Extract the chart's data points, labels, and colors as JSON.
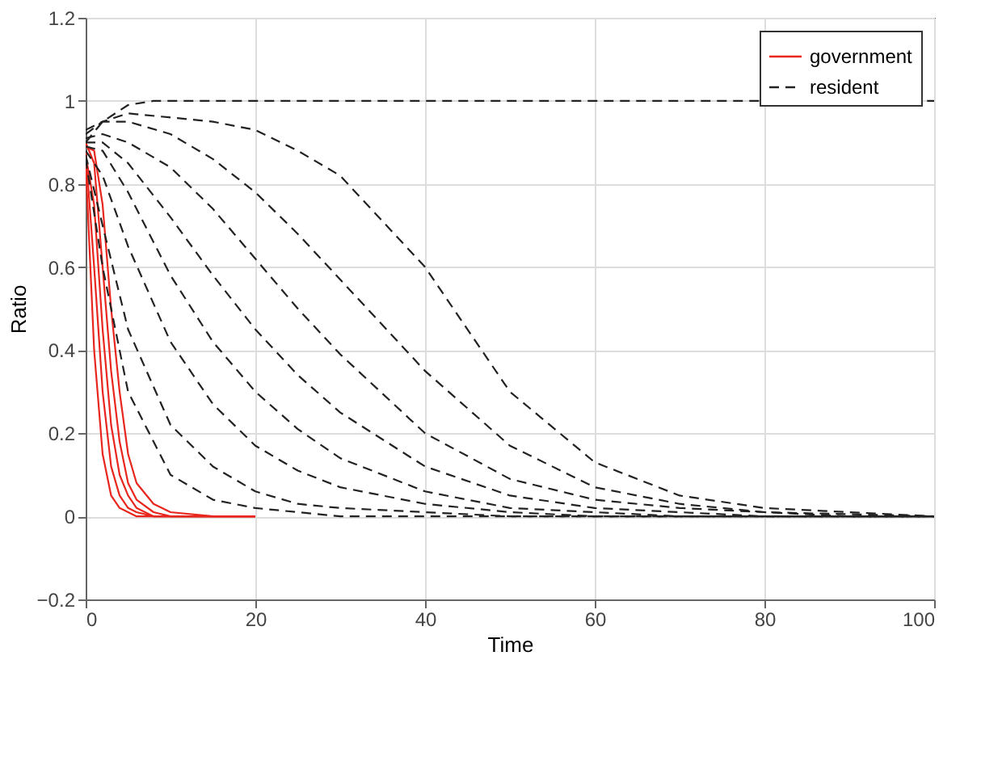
{
  "chart_data": {
    "type": "line",
    "xlabel": "Time",
    "ylabel": "Ratio",
    "xlim": [
      0,
      100
    ],
    "xticks": [
      0,
      20,
      40,
      60,
      80,
      100
    ],
    "ylim": [
      -0.2,
      1.2
    ],
    "yticks": [
      -0.2,
      0,
      0.2,
      0.4,
      0.6,
      0.8,
      1,
      1.2
    ],
    "grid": true,
    "legend": "top right",
    "series": [
      {
        "name": "government",
        "color": "#e8261e",
        "line_style": "solid",
        "x": [
          0,
          1,
          2,
          3,
          4,
          5,
          6,
          8,
          10,
          15,
          20
        ],
        "values": [
          0.9,
          0.85,
          0.6,
          0.35,
          0.18,
          0.08,
          0.04,
          0.01,
          0,
          0,
          0
        ]
      },
      {
        "name": "resident",
        "color": "#222222",
        "line_style": "dashed",
        "x": [
          0,
          2,
          5,
          10,
          15,
          20,
          25,
          30,
          40,
          50,
          60,
          70,
          80,
          90,
          100
        ],
        "values": [
          0.92,
          0.95,
          0.97,
          0.96,
          0.95,
          0.93,
          0.88,
          0.82,
          0.6,
          0.3,
          0.13,
          0.05,
          0.02,
          0.01,
          0
        ]
      },
      {
        "color": "#e8261e",
        "line_style": "solid",
        "x": [
          0,
          1,
          2,
          3,
          4,
          5,
          6,
          8,
          10,
          15,
          20
        ],
        "values": [
          0.88,
          0.6,
          0.3,
          0.12,
          0.05,
          0.02,
          0.01,
          0,
          0,
          0,
          0
        ]
      },
      {
        "color": "#e8261e",
        "line_style": "solid",
        "x": [
          0,
          1,
          2,
          3,
          4,
          5,
          6,
          8,
          10,
          15,
          20
        ],
        "values": [
          0.85,
          0.4,
          0.15,
          0.05,
          0.02,
          0.01,
          0,
          0,
          0,
          0,
          0
        ]
      },
      {
        "color": "#e8261e",
        "line_style": "solid",
        "x": [
          0,
          1,
          2,
          3,
          4,
          5,
          6,
          8,
          10,
          15,
          20
        ],
        "values": [
          0.87,
          0.75,
          0.45,
          0.22,
          0.1,
          0.05,
          0.02,
          0,
          0,
          0,
          0
        ]
      },
      {
        "color": "#e8261e",
        "line_style": "solid",
        "x": [
          0,
          1,
          2,
          3,
          4,
          5,
          6,
          8,
          10,
          15,
          20
        ],
        "values": [
          0.89,
          0.88,
          0.75,
          0.5,
          0.3,
          0.15,
          0.08,
          0.03,
          0.01,
          0,
          0
        ]
      },
      {
        "color": "#222222",
        "line_style": "dashed",
        "x": [
          0,
          2,
          5,
          10,
          15,
          20,
          25,
          30,
          40,
          50,
          60,
          70,
          80,
          90,
          100
        ],
        "values": [
          0.93,
          0.95,
          0.95,
          0.92,
          0.86,
          0.78,
          0.68,
          0.57,
          0.35,
          0.17,
          0.07,
          0.03,
          0.01,
          0.005,
          0
        ]
      },
      {
        "color": "#222222",
        "line_style": "dashed",
        "x": [
          0,
          2,
          5,
          10,
          15,
          20,
          25,
          30,
          40,
          50,
          60,
          70,
          80,
          90,
          100
        ],
        "values": [
          0.91,
          0.92,
          0.9,
          0.84,
          0.74,
          0.62,
          0.5,
          0.39,
          0.2,
          0.09,
          0.04,
          0.02,
          0.01,
          0,
          0
        ]
      },
      {
        "color": "#222222",
        "line_style": "dashed",
        "x": [
          0,
          2,
          5,
          10,
          15,
          20,
          25,
          30,
          40,
          50,
          60,
          70,
          80,
          90,
          100
        ],
        "values": [
          0.9,
          0.9,
          0.85,
          0.72,
          0.58,
          0.45,
          0.34,
          0.25,
          0.12,
          0.05,
          0.02,
          0.01,
          0,
          0,
          0
        ]
      },
      {
        "color": "#222222",
        "line_style": "dashed",
        "x": [
          0,
          2,
          5,
          10,
          15,
          20,
          25,
          30,
          40,
          50,
          60,
          70,
          80,
          90,
          100
        ],
        "values": [
          0.89,
          0.88,
          0.78,
          0.58,
          0.42,
          0.3,
          0.21,
          0.14,
          0.06,
          0.02,
          0.01,
          0,
          0,
          0,
          0
        ]
      },
      {
        "color": "#222222",
        "line_style": "dashed",
        "x": [
          0,
          2,
          5,
          10,
          15,
          20,
          25,
          30,
          40,
          50,
          60,
          70,
          80,
          90,
          100
        ],
        "values": [
          0.88,
          0.82,
          0.65,
          0.42,
          0.27,
          0.17,
          0.11,
          0.07,
          0.03,
          0.01,
          0,
          0,
          0,
          0,
          0
        ]
      },
      {
        "color": "#222222",
        "line_style": "dashed",
        "x": [
          0,
          2,
          5,
          10,
          15,
          20,
          25,
          30,
          40,
          50,
          60,
          70,
          80,
          90,
          100
        ],
        "values": [
          0.87,
          0.7,
          0.45,
          0.22,
          0.12,
          0.06,
          0.03,
          0.02,
          0.01,
          0,
          0,
          0,
          0,
          0,
          0
        ]
      },
      {
        "color": "#222222",
        "line_style": "dashed",
        "x": [
          0,
          2,
          5,
          10,
          15,
          20,
          25,
          30,
          40,
          50,
          60,
          70,
          80,
          90,
          100
        ],
        "values": [
          0.86,
          0.6,
          0.3,
          0.1,
          0.04,
          0.02,
          0.01,
          0,
          0,
          0,
          0,
          0,
          0,
          0,
          0
        ]
      },
      {
        "color": "#222222",
        "line_style": "dashed",
        "x": [
          0,
          2,
          5,
          8,
          10,
          20,
          40,
          60,
          100
        ],
        "values": [
          0.9,
          0.95,
          0.99,
          1,
          1,
          1,
          1,
          1,
          1
        ]
      }
    ]
  }
}
